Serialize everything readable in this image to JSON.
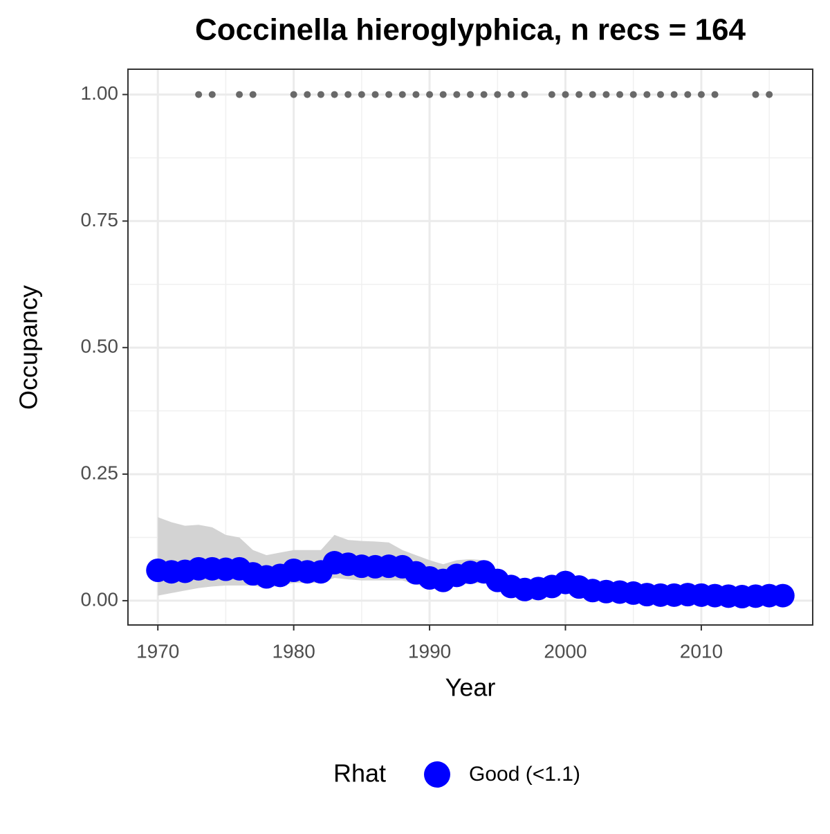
{
  "chart_data": {
    "type": "line",
    "title": "Coccinella hieroglyphica, n recs = 164",
    "x_label": "Year",
    "y_label": "Occupancy",
    "x": [
      1970,
      1971,
      1972,
      1973,
      1974,
      1975,
      1976,
      1977,
      1978,
      1979,
      1980,
      1981,
      1982,
      1983,
      1984,
      1985,
      1986,
      1987,
      1988,
      1989,
      1990,
      1991,
      1992,
      1993,
      1994,
      1995,
      1996,
      1997,
      1998,
      1999,
      2000,
      2001,
      2002,
      2003,
      2004,
      2005,
      2006,
      2007,
      2008,
      2009,
      2010,
      2011,
      2012,
      2013,
      2014,
      2015,
      2016
    ],
    "series": [
      {
        "name": "Good (<1.1)",
        "color": "#0000ff",
        "values": [
          0.06,
          0.057,
          0.058,
          0.063,
          0.063,
          0.062,
          0.063,
          0.053,
          0.047,
          0.05,
          0.06,
          0.057,
          0.057,
          0.075,
          0.072,
          0.068,
          0.067,
          0.068,
          0.067,
          0.055,
          0.045,
          0.04,
          0.05,
          0.056,
          0.057,
          0.04,
          0.028,
          0.022,
          0.024,
          0.028,
          0.036,
          0.027,
          0.02,
          0.018,
          0.017,
          0.015,
          0.012,
          0.011,
          0.011,
          0.012,
          0.011,
          0.01,
          0.009,
          0.008,
          0.009,
          0.01,
          0.01
        ]
      }
    ],
    "interval": {
      "color": "#d3d3d3",
      "upper": [
        0.165,
        0.155,
        0.148,
        0.15,
        0.145,
        0.13,
        0.125,
        0.1,
        0.09,
        0.095,
        0.1,
        0.1,
        0.1,
        0.13,
        0.12,
        0.118,
        0.117,
        0.115,
        0.1,
        0.09,
        0.08,
        0.072,
        0.08,
        0.082,
        0.08,
        0.055,
        0.04,
        0.035,
        0.036,
        0.04,
        0.048,
        0.04,
        0.032,
        0.03,
        0.028,
        0.025,
        0.022,
        0.02,
        0.02,
        0.021,
        0.02,
        0.019,
        0.018,
        0.017,
        0.018,
        0.019,
        0.02
      ],
      "lower": [
        0.01,
        0.015,
        0.02,
        0.025,
        0.028,
        0.03,
        0.03,
        0.03,
        0.025,
        0.03,
        0.035,
        0.035,
        0.035,
        0.045,
        0.042,
        0.04,
        0.04,
        0.04,
        0.04,
        0.032,
        0.026,
        0.022,
        0.03,
        0.034,
        0.035,
        0.024,
        0.016,
        0.012,
        0.013,
        0.016,
        0.022,
        0.015,
        0.01,
        0.009,
        0.008,
        0.007,
        0.005,
        0.005,
        0.005,
        0.005,
        0.004,
        0.004,
        0.003,
        0.003,
        0.003,
        0.004,
        0.004
      ]
    },
    "records": {
      "color": "#696969",
      "x": [
        1973,
        1974,
        1976,
        1977,
        1980,
        1981,
        1982,
        1983,
        1984,
        1985,
        1986,
        1987,
        1988,
        1989,
        1990,
        1991,
        1992,
        1993,
        1994,
        1995,
        1996,
        1997,
        1999,
        2000,
        2001,
        2002,
        2003,
        2004,
        2005,
        2006,
        2007,
        2008,
        2009,
        2010,
        2011,
        2014,
        2015
      ],
      "values": [
        1,
        1,
        1,
        1,
        1,
        1,
        1,
        1,
        1,
        1,
        1,
        1,
        1,
        1,
        1,
        1,
        1,
        1,
        1,
        1,
        1,
        1,
        1,
        1,
        1,
        1,
        1,
        1,
        1,
        1,
        1,
        1,
        1,
        1,
        1,
        1,
        1
      ]
    },
    "xlim": [
      1967.8,
      2018.2
    ],
    "ylim": [
      -0.048,
      1.05
    ],
    "xticks": [
      1970,
      1980,
      1990,
      2000,
      2010
    ],
    "yticks": [
      {
        "value": 0,
        "label": "0.00"
      },
      {
        "value": 0.25,
        "label": "0.25"
      },
      {
        "value": 0.5,
        "label": "0.50"
      },
      {
        "value": 0.75,
        "label": "0.75"
      },
      {
        "value": 1,
        "label": "1.00"
      }
    ],
    "x_minor_grid": [
      1975,
      1985,
      1995,
      2005,
      2015
    ],
    "y_minor_grid": [
      0.125,
      0.375,
      0.625,
      0.875
    ],
    "grid": true,
    "legend_title": "Rhat",
    "legend_position": "bottom"
  }
}
